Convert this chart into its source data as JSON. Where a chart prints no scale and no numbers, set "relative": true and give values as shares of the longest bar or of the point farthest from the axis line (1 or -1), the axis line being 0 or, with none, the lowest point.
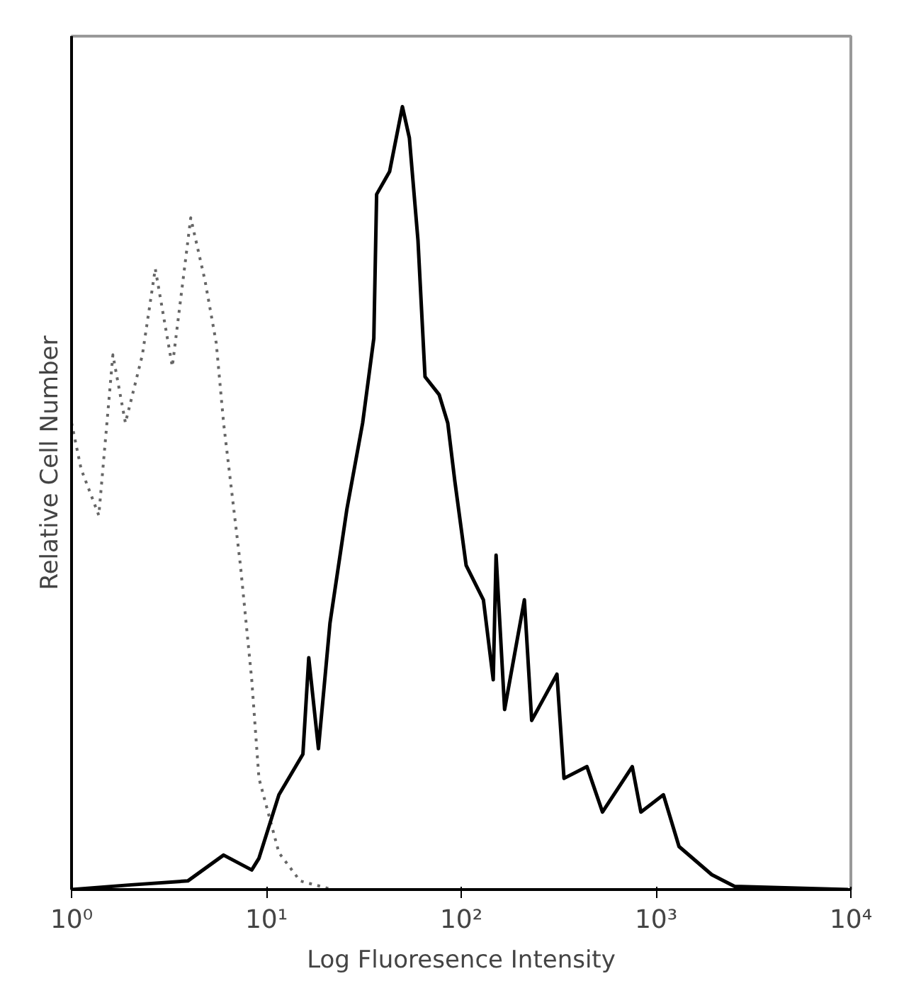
{
  "chart_data": {
    "type": "line",
    "xlabel": "Log Fluoresence Intensity",
    "ylabel": "Relative Cell Number",
    "relative": true,
    "log": "x",
    "grid": false,
    "xlim": [
      1,
      10000
    ],
    "xticks": [
      {
        "value": 1,
        "label": "10⁰"
      },
      {
        "value": 10,
        "label": "10¹"
      },
      {
        "value": 100,
        "label": "10²"
      },
      {
        "value": 1000,
        "label": "10³"
      },
      {
        "value": 10000,
        "label": "10⁴"
      }
    ],
    "series": [
      {
        "color": "#666666",
        "line_style": "dotted",
        "x": [
          1,
          1.12,
          1.38,
          1.63,
          1.89,
          2.31,
          2.69,
          3.29,
          4.09,
          4.84,
          5.53,
          6.03,
          7.36,
          8.41,
          9.16,
          11.6,
          14.9,
          21.9,
          49.0,
          1932
        ],
        "values": [
          0.596,
          0.537,
          0.478,
          0.683,
          0.596,
          0.683,
          0.793,
          0.668,
          0.858,
          0.778,
          0.698,
          0.596,
          0.414,
          0.268,
          0.142,
          0.047,
          0.011,
          0,
          0,
          0
        ]
      },
      {
        "color": "#000000",
        "line_style": "solid",
        "x": [
          1,
          2.02,
          3.95,
          6.03,
          8.41,
          9.16,
          11.6,
          15.4,
          16.5,
          18.5,
          21.2,
          25.9,
          31.2,
          35.6,
          36.8,
          42.9,
          49.9,
          54.2,
          60.0,
          65.2,
          77.1,
          85.3,
          92.7,
          106,
          130,
          146,
          151,
          167,
          211,
          230,
          310,
          337,
          442,
          531,
          755,
          836,
          1091,
          1312,
          1932,
          2529,
          9660
        ],
        "values": [
          0,
          0.006,
          0.011,
          0.044,
          0.025,
          0.04,
          0.121,
          0.173,
          0.296,
          0.18,
          0.34,
          0.486,
          0.596,
          0.704,
          0.888,
          0.917,
          1.0,
          0.96,
          0.829,
          0.655,
          0.632,
          0.596,
          0.522,
          0.414,
          0.37,
          0.268,
          0.427,
          0.23,
          0.37,
          0.216,
          0.275,
          0.142,
          0.157,
          0.099,
          0.157,
          0.099,
          0.121,
          0.055,
          0.019,
          0.004,
          0
        ]
      }
    ]
  }
}
